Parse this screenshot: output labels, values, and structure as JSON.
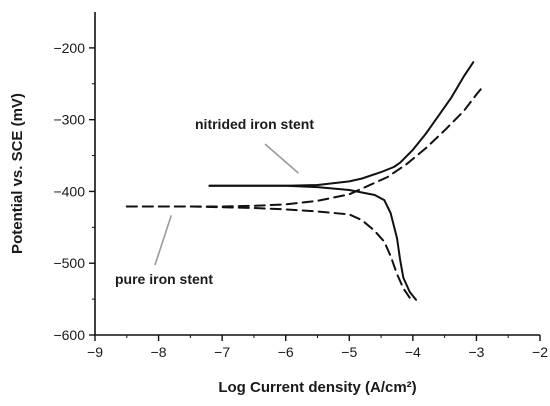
{
  "chart_data": {
    "type": "line",
    "title": "",
    "xlabel": "Log Current density (A/cm²)",
    "ylabel": "Potential vs. SCE (mV)",
    "xlim": [
      -9,
      -2
    ],
    "ylim": [
      -600,
      -150
    ],
    "xticks": [
      -9,
      -8,
      -7,
      -6,
      -5,
      -4,
      -3,
      -2
    ],
    "yticks": [
      -600,
      -500,
      -400,
      -300,
      -200
    ],
    "tick_labels": {
      "x": [
        "−9",
        "−8",
        "−7",
        "−6",
        "−5",
        "−4",
        "−3",
        "−2"
      ],
      "y": [
        "−600",
        "−500",
        "−400",
        "−300",
        "−200"
      ]
    },
    "grid": false,
    "legend": "none",
    "series": [
      {
        "label": "nitrided iron stent",
        "style": "solid",
        "color": "#111111",
        "branches": [
          {
            "x": [
              -7.2,
              -6.5,
              -6.0,
              -5.5,
              -5.0,
              -4.6,
              -4.45,
              -4.35,
              -4.25,
              -4.2,
              -4.15,
              -4.05,
              -3.95
            ],
            "y": [
              -392,
              -392,
              -392,
              -394,
              -398,
              -405,
              -412,
              -430,
              -465,
              -495,
              -520,
              -540,
              -551
            ]
          },
          {
            "x": [
              -7.2,
              -6.5,
              -6.0,
              -5.5,
              -5.0,
              -4.8,
              -4.5,
              -4.3,
              -4.2,
              -4.0,
              -3.8,
              -3.6,
              -3.4,
              -3.2,
              -3.05
            ],
            "y": [
              -392,
              -392,
              -392,
              -391,
              -386,
              -382,
              -373,
              -366,
              -360,
              -342,
              -320,
              -295,
              -270,
              -240,
              -220
            ]
          }
        ]
      },
      {
        "label": "pure iron stent",
        "style": "dashed",
        "color": "#111111",
        "branches": [
          {
            "x": [
              -8.5,
              -7.5,
              -7.0,
              -6.5,
              -6.0,
              -5.5,
              -5.0,
              -4.8,
              -4.6,
              -4.45,
              -4.35,
              -4.25,
              -4.15,
              -4.05
            ],
            "y": [
              -421,
              -421,
              -422,
              -423,
              -425,
              -428,
              -432,
              -440,
              -455,
              -470,
              -490,
              -515,
              -535,
              -548
            ]
          },
          {
            "x": [
              -8.5,
              -7.5,
              -7.0,
              -6.5,
              -6.0,
              -5.5,
              -5.0,
              -4.7,
              -4.4,
              -4.1,
              -3.8,
              -3.5,
              -3.2,
              -3.0,
              -2.88
            ],
            "y": [
              -421,
              -421,
              -421,
              -420,
              -418,
              -413,
              -404,
              -392,
              -380,
              -362,
              -340,
              -315,
              -288,
              -265,
              -252
            ]
          }
        ]
      }
    ],
    "annotations": [
      {
        "text": "nitrided iron stent",
        "anchor": {
          "x": -5.8,
          "y": -380
        }
      },
      {
        "text": "pure iron stent",
        "anchor": {
          "x": -7.8,
          "y": -425
        }
      }
    ]
  }
}
